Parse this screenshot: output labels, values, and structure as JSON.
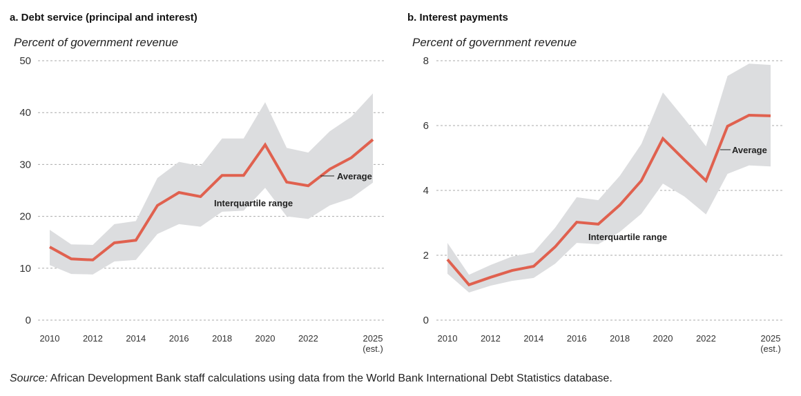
{
  "colors": {
    "average": "#e0614f",
    "band": "#dcdddf",
    "grid": "#aaaaaa"
  },
  "source": {
    "label": "Source:",
    "text": " African Development Bank staff calculations using data from the World Bank International Debt Statistics database."
  },
  "chart_data": [
    {
      "type": "area",
      "title": "a. Debt service (principal and interest)",
      "ylabel": "Percent of government revenue",
      "xlabel": "",
      "x": [
        2010,
        2011,
        2012,
        2013,
        2014,
        2015,
        2016,
        2017,
        2018,
        2019,
        2020,
        2021,
        2022,
        2023,
        2024,
        2025
      ],
      "xticks": [
        "2010",
        "2012",
        "2014",
        "2016",
        "2018",
        "2020",
        "2022",
        "2025"
      ],
      "xtick_values": [
        2010,
        2012,
        2014,
        2016,
        2018,
        2020,
        2022,
        2025
      ],
      "xtick_note": "(est.)",
      "yticks": [
        "0",
        "10",
        "20",
        "30",
        "40",
        "50"
      ],
      "ylim": [
        0,
        50
      ],
      "grid": true,
      "series": [
        {
          "name": "Average",
          "type": "line",
          "values": [
            14.1,
            11.8,
            11.6,
            14.9,
            15.4,
            22.1,
            24.6,
            23.8,
            27.9,
            27.9,
            33.8,
            26.6,
            25.9,
            29.1,
            31.3,
            34.8
          ]
        },
        {
          "name": "Interquartile range",
          "type": "band",
          "upper": [
            17.4,
            14.6,
            14.5,
            18.5,
            19.1,
            27.4,
            30.5,
            29.7,
            35.0,
            35.0,
            42.0,
            33.2,
            32.3,
            36.4,
            39.2,
            43.7
          ],
          "lower": [
            10.6,
            8.9,
            8.8,
            11.3,
            11.6,
            16.6,
            18.5,
            18.0,
            20.9,
            21.1,
            25.5,
            20.0,
            19.5,
            22.1,
            23.5,
            26.5
          ]
        }
      ],
      "annotations": {
        "average": "Average",
        "band": "Interquartile range"
      }
    },
    {
      "type": "area",
      "title": "b. Interest payments",
      "ylabel": "Percent of government revenue",
      "xlabel": "",
      "x": [
        2010,
        2011,
        2012,
        2013,
        2014,
        2015,
        2016,
        2017,
        2018,
        2019,
        2020,
        2021,
        2022,
        2023,
        2024,
        2025
      ],
      "xticks": [
        "2010",
        "2012",
        "2014",
        "2016",
        "2018",
        "2020",
        "2022",
        "2025"
      ],
      "xtick_values": [
        2010,
        2012,
        2014,
        2016,
        2018,
        2020,
        2022,
        2025
      ],
      "xtick_note": "(est.)",
      "yticks": [
        "0",
        "2",
        "4",
        "6",
        "8"
      ],
      "ylim": [
        0,
        8
      ],
      "grid": true,
      "series": [
        {
          "name": "Average",
          "type": "line",
          "values": [
            1.87,
            1.09,
            1.32,
            1.53,
            1.66,
            2.26,
            3.02,
            2.96,
            3.55,
            4.3,
            5.6,
            4.94,
            4.3,
            5.98,
            6.32,
            6.3
          ]
        },
        {
          "name": "Interquartile range",
          "type": "band",
          "upper": [
            2.38,
            1.4,
            1.7,
            1.96,
            2.09,
            2.85,
            3.79,
            3.7,
            4.45,
            5.43,
            7.02,
            6.21,
            5.36,
            7.53,
            7.91,
            7.87
          ],
          "lower": [
            1.43,
            0.85,
            1.06,
            1.21,
            1.3,
            1.74,
            2.38,
            2.34,
            2.72,
            3.28,
            4.21,
            3.81,
            3.26,
            4.51,
            4.77,
            4.74
          ]
        }
      ],
      "annotations": {
        "average": "Average",
        "band": "Interquartile range"
      }
    }
  ]
}
